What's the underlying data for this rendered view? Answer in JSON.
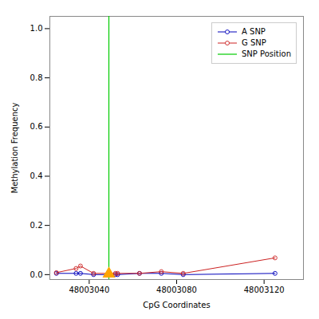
{
  "chart_data": {
    "type": "line",
    "xlabel": "CpG Coordinates",
    "ylabel": "Methylation Frequency",
    "x": [
      48003025,
      48003034,
      48003036,
      48003042,
      48003052,
      48003053,
      48003063,
      48003073,
      48003083,
      48003125
    ],
    "series": [
      {
        "name": "A SNP",
        "type": "line",
        "color": "#0000bb",
        "marker": "circle",
        "values": [
          0.005,
          0.005,
          0.005,
          0.0,
          0.0,
          0.0,
          0.005,
          0.005,
          0.0,
          0.005
        ]
      },
      {
        "name": "G SNP",
        "type": "line",
        "color": "#cc2222",
        "marker": "circle",
        "values": [
          0.008,
          0.025,
          0.035,
          0.005,
          0.005,
          0.005,
          0.005,
          0.012,
          0.005,
          0.068
        ]
      },
      {
        "name": "SNP Position",
        "type": "vline",
        "color": "#00cc00",
        "x": 48003049
      },
      {
        "type": "scatter",
        "marker": "triangle",
        "color": "#FFA500",
        "x": [
          48003049
        ],
        "values": [
          0.003
        ]
      }
    ],
    "xlim": [
      48003022,
      48003138
    ],
    "ylim": [
      -0.02,
      1.05
    ],
    "xticks": [
      48003040,
      48003080,
      48003120
    ],
    "yticks": [
      {
        "value": 0.0,
        "label": "0.0"
      },
      0.2,
      0.4,
      0.6,
      0.8,
      {
        "value": 1.0,
        "label": "1.0"
      }
    ],
    "grid": false,
    "legend": "upper right"
  }
}
